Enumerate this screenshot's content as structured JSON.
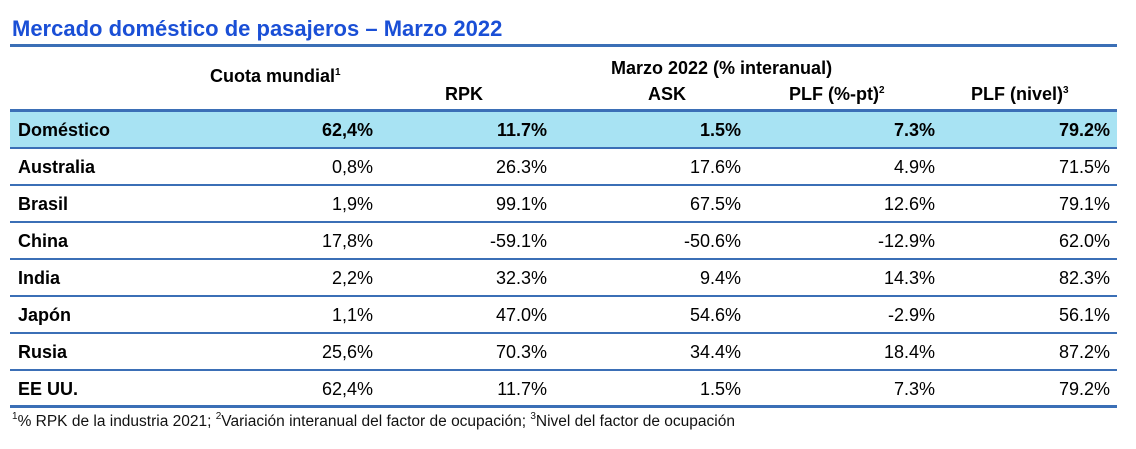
{
  "title": "Mercado doméstico de pasajeros – Marzo 2022",
  "header": {
    "cuota": "Cuota mundial",
    "cuota_sup": "1",
    "group": "Marzo 2022 (% interanual)",
    "rpk": "RPK",
    "ask": "ASK",
    "plf_pt": "PLF (%-pt)",
    "plf_pt_sup": "2",
    "plf_nivel": "PLF (nivel)",
    "plf_nivel_sup": "3"
  },
  "rows": [
    {
      "name": "Doméstico",
      "cuota": "62,4%",
      "rpk": "11.7%",
      "ask": "1.5%",
      "plf_pt": "7.3%",
      "plf_nivel": "79.2%"
    },
    {
      "name": "Australia",
      "cuota": "0,8%",
      "rpk": "26.3%",
      "ask": "17.6%",
      "plf_pt": "4.9%",
      "plf_nivel": "71.5%"
    },
    {
      "name": "Brasil",
      "cuota": "1,9%",
      "rpk": "99.1%",
      "ask": "67.5%",
      "plf_pt": "12.6%",
      "plf_nivel": "79.1%"
    },
    {
      "name": "China",
      "cuota": "17,8%",
      "rpk": "-59.1%",
      "ask": "-50.6%",
      "plf_pt": "-12.9%",
      "plf_nivel": "62.0%"
    },
    {
      "name": "India",
      "cuota": "2,2%",
      "rpk": "32.3%",
      "ask": "9.4%",
      "plf_pt": "14.3%",
      "plf_nivel": "82.3%"
    },
    {
      "name": "Japón",
      "cuota": "1,1%",
      "rpk": "47.0%",
      "ask": "54.6%",
      "plf_pt": "-2.9%",
      "plf_nivel": "56.1%"
    },
    {
      "name": "Rusia",
      "cuota": "25,6%",
      "rpk": "70.3%",
      "ask": "34.4%",
      "plf_pt": "18.4%",
      "plf_nivel": "87.2%"
    },
    {
      "name": "EE UU.",
      "cuota": "62,4%",
      "rpk": "11.7%",
      "ask": "1.5%",
      "plf_pt": "7.3%",
      "plf_nivel": "79.2%"
    }
  ],
  "footnote": {
    "sup1": "1",
    "text1": "% RPK de la industria 2021; ",
    "sup2": "2",
    "text2": "Variación interanual del factor de ocupación; ",
    "sup3": "3",
    "text3": "Nivel del factor de ocupación"
  },
  "colors": {
    "title": "#1a4fd6",
    "rules": "#3b6fb6",
    "highlight_row": "#a8e3f3"
  }
}
